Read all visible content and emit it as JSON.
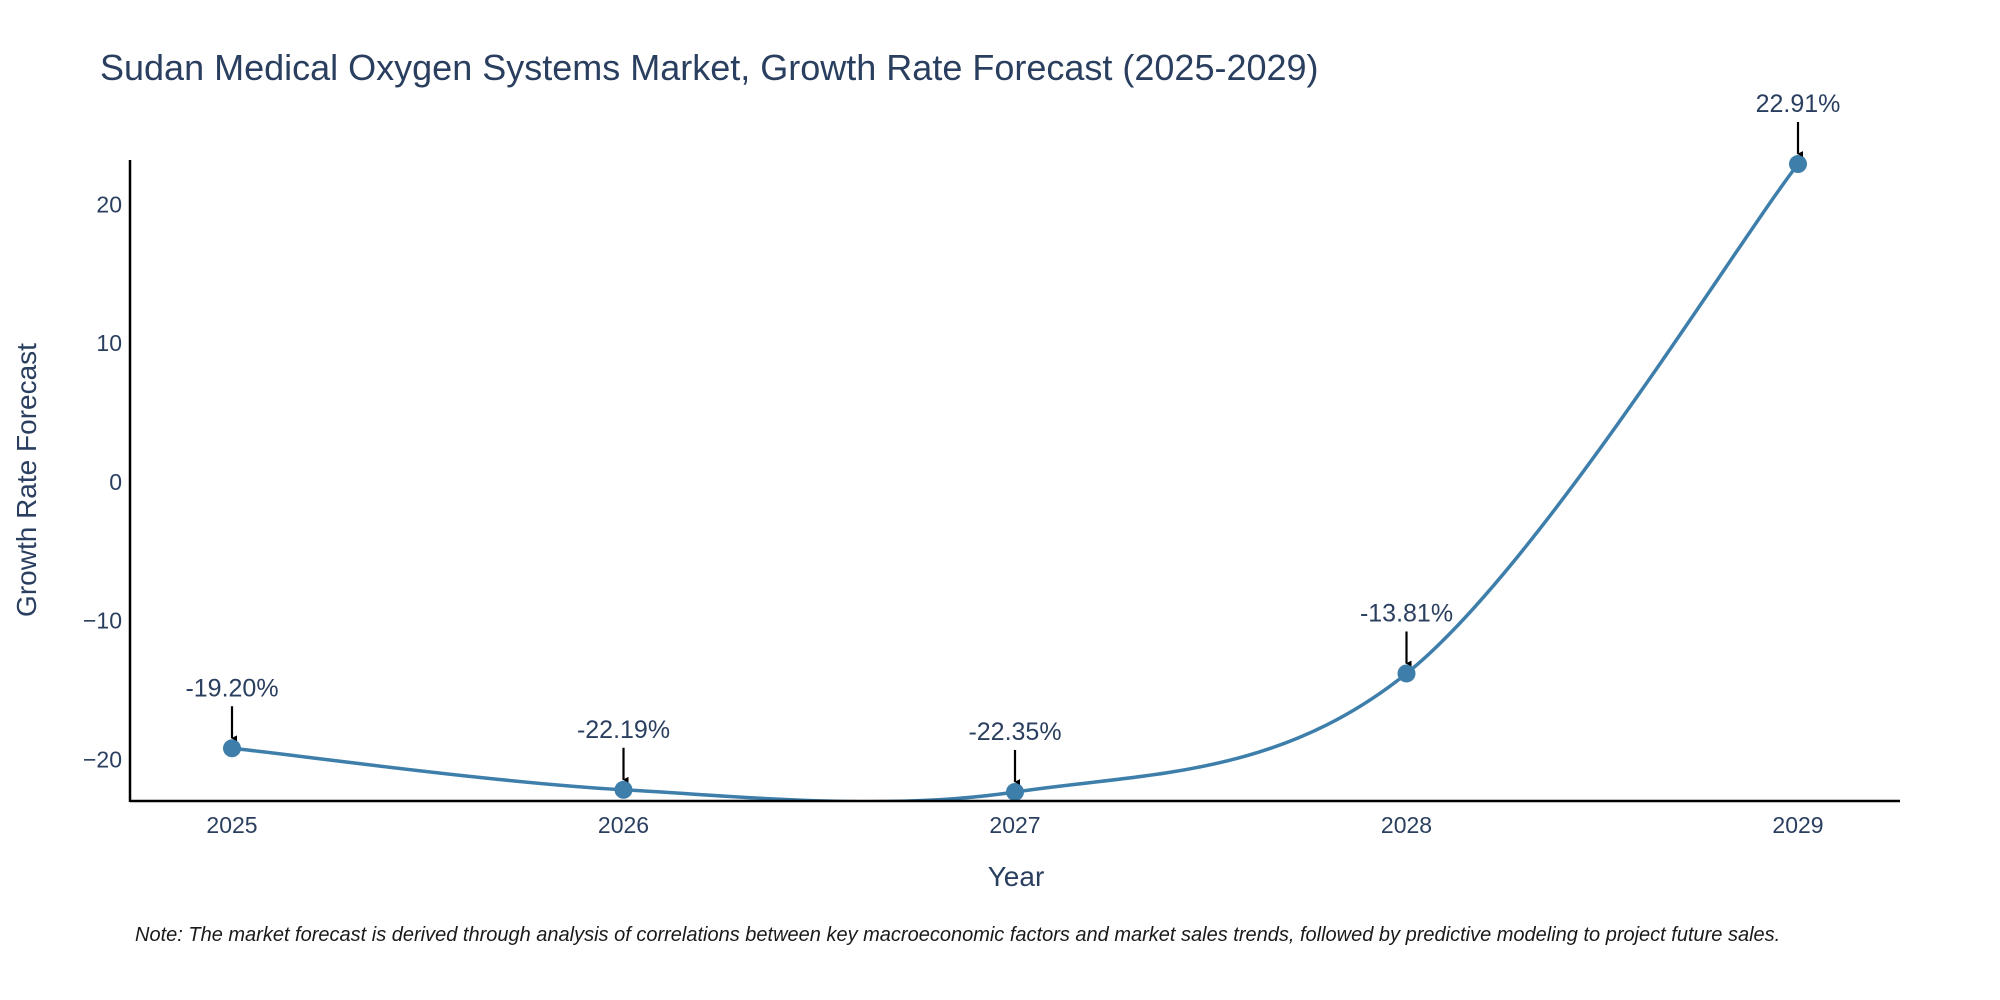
{
  "chart_data": {
    "type": "line",
    "title": "Sudan Medical Oxygen Systems Market, Growth Rate Forecast (2025-2029)",
    "xlabel": "Year",
    "ylabel": "Growth Rate Forecast",
    "categories": [
      "2025",
      "2026",
      "2027",
      "2028",
      "2029"
    ],
    "series": [
      {
        "name": "Growth Rate Forecast",
        "values": [
          -19.2,
          -22.19,
          -22.35,
          -13.81,
          22.91
        ]
      }
    ],
    "data_labels": [
      "-19.20%",
      "-22.19%",
      "-22.35%",
      "-13.81%",
      "22.91%"
    ],
    "y_ticks": [
      20,
      10,
      0,
      -10,
      -20
    ],
    "y_tick_labels": [
      "20",
      "10",
      "0",
      "−10",
      "−20"
    ],
    "ylim": [
      -23,
      23.2
    ],
    "grid": false,
    "line_color": "#3e7eab",
    "marker_color": "#3e7eab",
    "annotation_arrow_color": "#000000"
  },
  "note": "Note: The market forecast is derived through analysis of correlations between key macroeconomic factors and market sales trends, followed by predictive modeling to project future sales."
}
